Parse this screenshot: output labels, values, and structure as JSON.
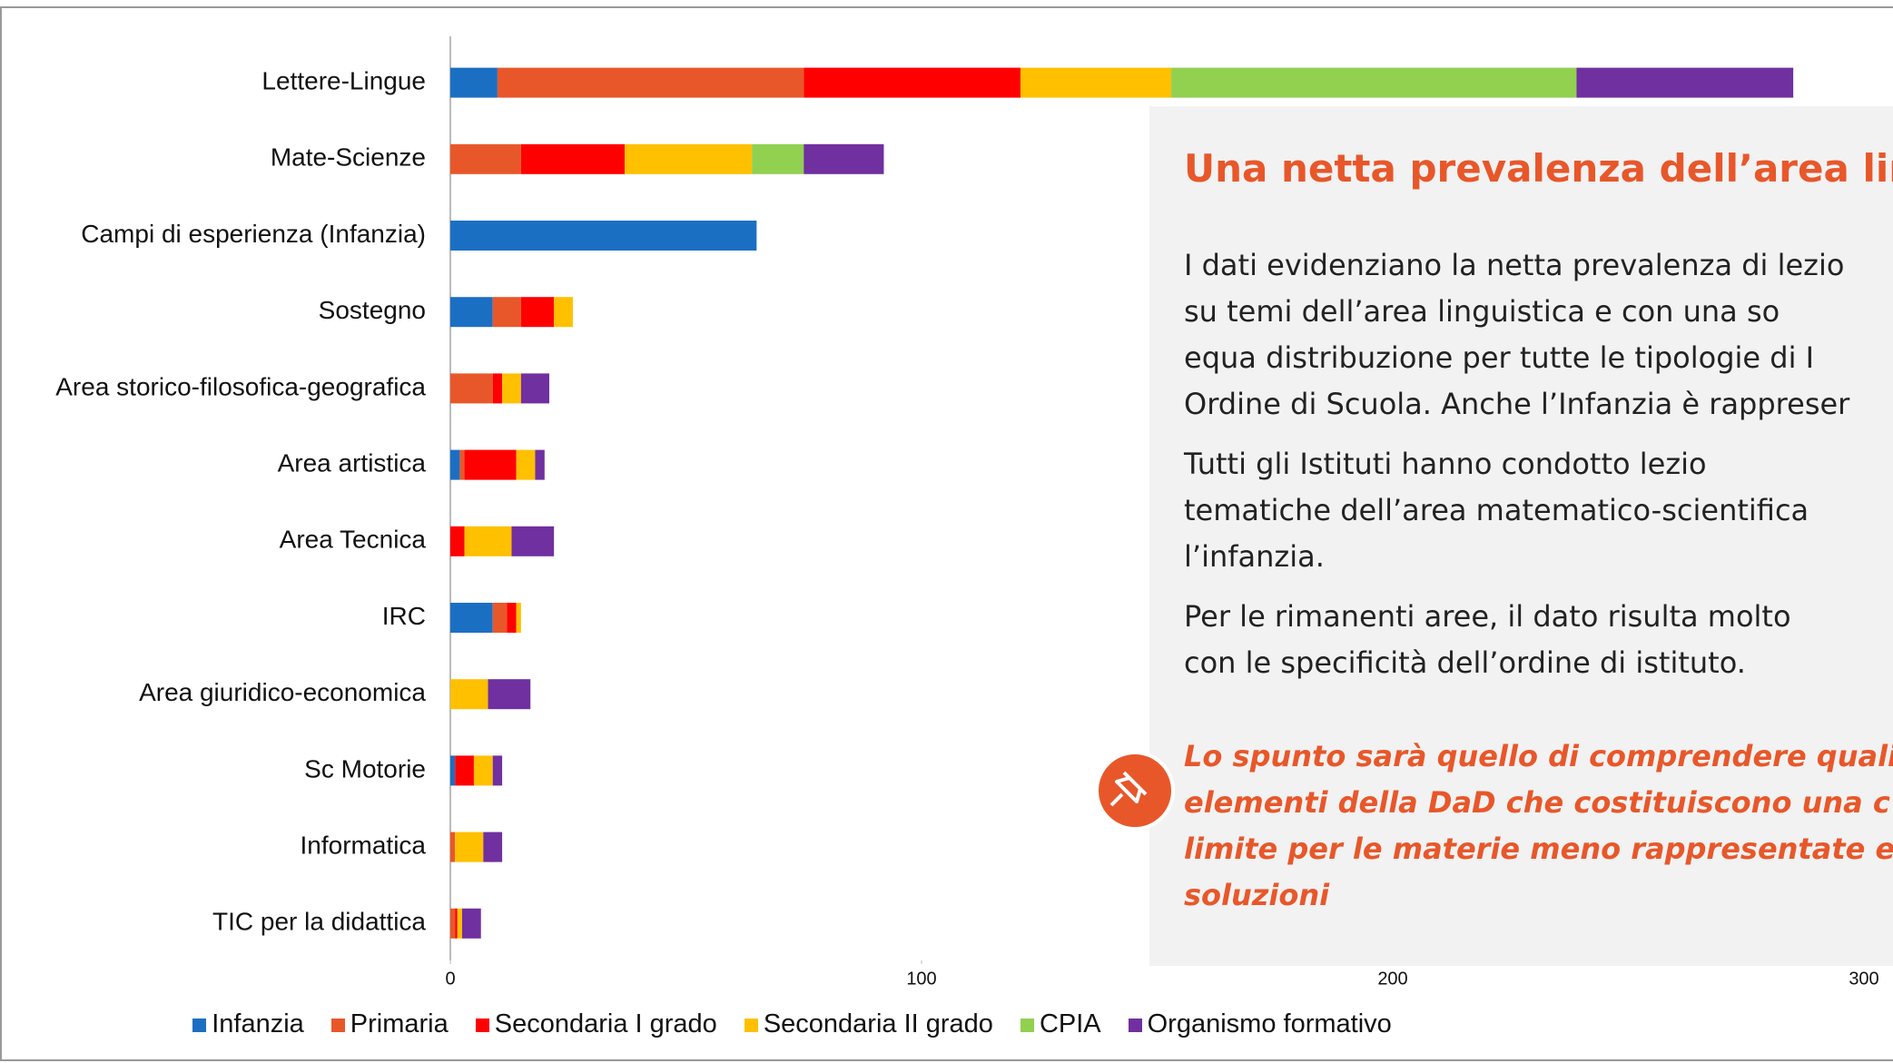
{
  "chart_data": {
    "type": "bar",
    "orientation": "horizontal",
    "stacked": true,
    "categories": [
      "Lettere-Lingue",
      "Mate-Scienze",
      "Campi di esperienza (Infanzia)",
      "Sostegno",
      "Area storico-filosofica-geografica",
      "Area artistica",
      "Area Tecnica",
      "IRC",
      "Area giuridico-economica",
      "Sc Motorie",
      "Informatica",
      "TIC per la didattica"
    ],
    "series": [
      {
        "name": "Infanzia",
        "color": "#1b6fc3",
        "values": [
          10,
          0,
          65,
          9,
          0,
          2,
          0,
          9,
          0,
          1,
          0,
          0
        ]
      },
      {
        "name": "Primaria",
        "color": "#e8572a",
        "values": [
          65,
          15,
          0,
          6,
          9,
          1,
          0,
          3,
          0,
          0,
          1,
          1
        ]
      },
      {
        "name": "Secondaria I grado",
        "color": "#ff0000",
        "values": [
          46,
          22,
          0,
          7,
          2,
          11,
          3,
          2,
          0,
          4,
          0,
          0.5
        ]
      },
      {
        "name": "Secondaria II grado",
        "color": "#ffc000",
        "values": [
          32,
          27,
          0,
          4,
          4,
          4,
          10,
          1,
          8,
          4,
          6,
          1
        ]
      },
      {
        "name": "CPIA",
        "color": "#92d050",
        "values": [
          86,
          11,
          0,
          0,
          0,
          0,
          0,
          0,
          0,
          0,
          0,
          0
        ]
      },
      {
        "name": "Organismo formativo",
        "color": "#7030a0",
        "values": [
          46,
          17,
          0,
          0,
          6,
          2,
          9,
          0,
          9,
          2,
          4,
          4
        ]
      }
    ],
    "xlim": [
      0,
      300
    ],
    "xticks": [
      0,
      100,
      200,
      300
    ],
    "grid": false,
    "legend": "bottom"
  },
  "text_panel": {
    "title": "Una netta prevalenza dell’area lingu",
    "paragraphs": [
      [
        "I dati evidenziano la netta prevalenza di lezio",
        "su temi dell’area linguistica e con una so",
        "equa distribuzione per tutte le tipologie di I",
        "Ordine di Scuola. Anche l’Infanzia è rappreser"
      ],
      [
        "Tutti gli Istituti hanno condotto lezio",
        "tematiche dell’area matematico-scientifica",
        "l’infanzia."
      ],
      [
        "Per le rimanenti aree, il dato risulta molto",
        "con le specificità dell’ordine di istituto."
      ]
    ],
    "note": [
      "Lo spunto sarà quello di comprendere quali",
      "elementi della DaD che costituiscono una c",
      "limite per le materie meno rappresentate e",
      "soluzioni"
    ]
  }
}
